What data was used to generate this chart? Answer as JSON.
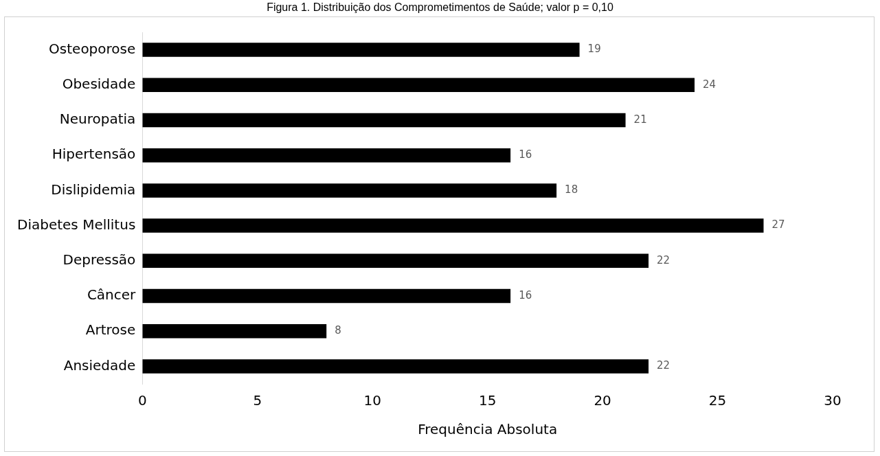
{
  "chart_data": {
    "type": "bar",
    "orientation": "horizontal",
    "title": "Figura 1. Distribuição dos Comprometimentos de Saúde; valor p = 0,10",
    "xlabel": "Frequência Absoluta",
    "categories": [
      "Osteoporose",
      "Obesidade",
      "Neuropatia",
      "Hipertensão",
      "Dislipidemia",
      "Diabetes Mellitus",
      "Depressão",
      "Câncer",
      "Artrose",
      "Ansiedade"
    ],
    "values": [
      19,
      24,
      21,
      16,
      18,
      27,
      22,
      16,
      8,
      22
    ],
    "color": "#000000",
    "xlim": [
      0,
      30
    ],
    "xticks": [
      0,
      5,
      10,
      15,
      20,
      25,
      30
    ],
    "grid": false,
    "legend": false,
    "data_labels": true
  }
}
